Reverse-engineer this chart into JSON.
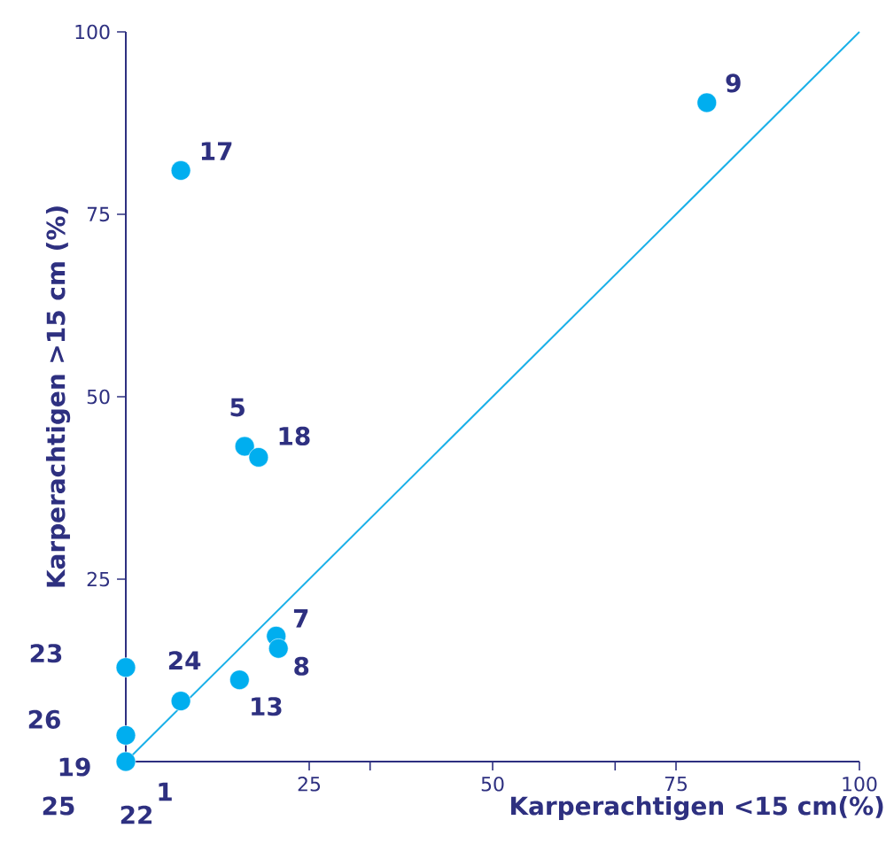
{
  "chart_data": {
    "type": "scatter",
    "xlabel": "Karperachtigen <15 cm(%)",
    "ylabel": "Karperachtigen >15 cm (%)",
    "xlim": [
      0,
      100
    ],
    "ylim": [
      0,
      100
    ],
    "xticks": [
      25,
      {
        "value": 33.3,
        "label": null
      },
      50,
      {
        "value": 66.7,
        "label": null
      },
      75,
      100
    ],
    "yticks": [
      25,
      50,
      75,
      100
    ],
    "series": [
      {
        "type": "line",
        "color": "#1ab0e8",
        "x": [
          0,
          100
        ],
        "values": [
          0,
          100
        ]
      },
      {
        "color": "#00aeef",
        "marker": "circle",
        "x": [
          0,
          16.2,
          20.5,
          20.8,
          79.2,
          15.5,
          7.5,
          18.1,
          0,
          7.5,
          0
        ],
        "values": [
          0,
          43.2,
          17.2,
          15.5,
          90.3,
          11.2,
          81,
          41.7,
          12.9,
          8.3,
          3.6
        ]
      }
    ],
    "annotations": [
      {
        "text": "1",
        "x": 0,
        "y": 0
      },
      {
        "text": "5",
        "x": 16.2,
        "y": 43.2
      },
      {
        "text": "7",
        "x": 20.5,
        "y": 17.2
      },
      {
        "text": "8",
        "x": 20.8,
        "y": 15.5
      },
      {
        "text": "9",
        "x": 79.2,
        "y": 90.3
      },
      {
        "text": "13",
        "x": 15.5,
        "y": 11.2
      },
      {
        "text": "17",
        "x": 7.5,
        "y": 81
      },
      {
        "text": "18",
        "x": 18.1,
        "y": 41.7
      },
      {
        "text": "19",
        "x": 0,
        "y": 0
      },
      {
        "text": "22",
        "x": 0,
        "y": 0
      },
      {
        "text": "23",
        "x": 0,
        "y": 12.9
      },
      {
        "text": "24",
        "x": 7.5,
        "y": 8.3
      },
      {
        "text": "25",
        "x": 0,
        "y": 0
      },
      {
        "text": "26",
        "x": 0,
        "y": 3.6
      }
    ]
  }
}
